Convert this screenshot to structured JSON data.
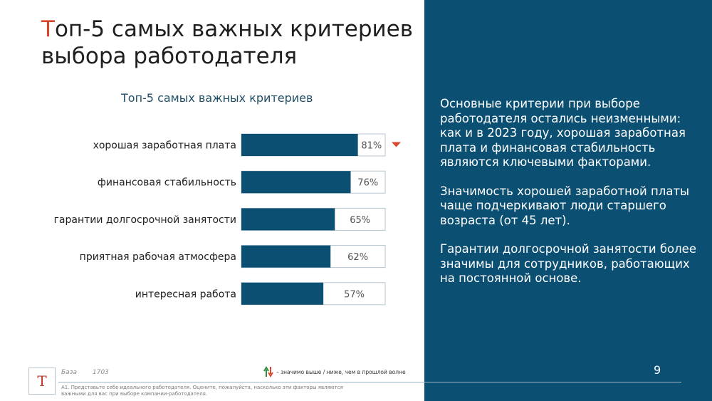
{
  "title": {
    "first_letter": "Т",
    "rest": "оп-5 самых важных критериев выбора работодателя"
  },
  "chart_data": {
    "type": "bar",
    "orientation": "horizontal",
    "title": "Топ-5 самых важных критериев",
    "categories": [
      "хорошая заработная плата",
      "финансовая стабильность",
      "гарантии долгосрочной занятости",
      "приятная рабочая атмосфера",
      "интересная работа"
    ],
    "values": [
      81,
      76,
      65,
      62,
      57
    ],
    "value_labels": [
      "81%",
      "76%",
      "65%",
      "62%",
      "57%"
    ],
    "xlim": [
      0,
      100
    ],
    "markers": [
      {
        "category_index": 0,
        "type": "down-arrow",
        "color": "#d9472b"
      }
    ],
    "bar_color": "#0b4f73"
  },
  "right_panel": {
    "paragraphs": [
      "Основные критерии при выборе работодателя остались неизменными: как и в 2023 году, хорошая заработная плата и финансовая стабильность являются ключевыми факторами.",
      "Значимость хорошей заработной платы чаще подчеркивают люди старшего возраста (от 45 лет).",
      "Гарантии долгосрочной занятости более значимы для сотрудников, работающих на постоянной основе."
    ],
    "page_number": "9"
  },
  "footer": {
    "logo_letter": "Т",
    "base_label": "База",
    "base_value": "1703",
    "legend_text": "– значимо выше / ниже, чем в прошлой волне",
    "footnote": "A1. Представьте себе идеального работодателя. Оцените, пожалуйста, насколько эти факторы являются важными для вас при выборе компании-работодателя."
  },
  "colors": {
    "accent": "#d9472b",
    "brand": "#0b4f73",
    "legend_up": "#2e8b3e",
    "legend_down": "#d9472b"
  }
}
